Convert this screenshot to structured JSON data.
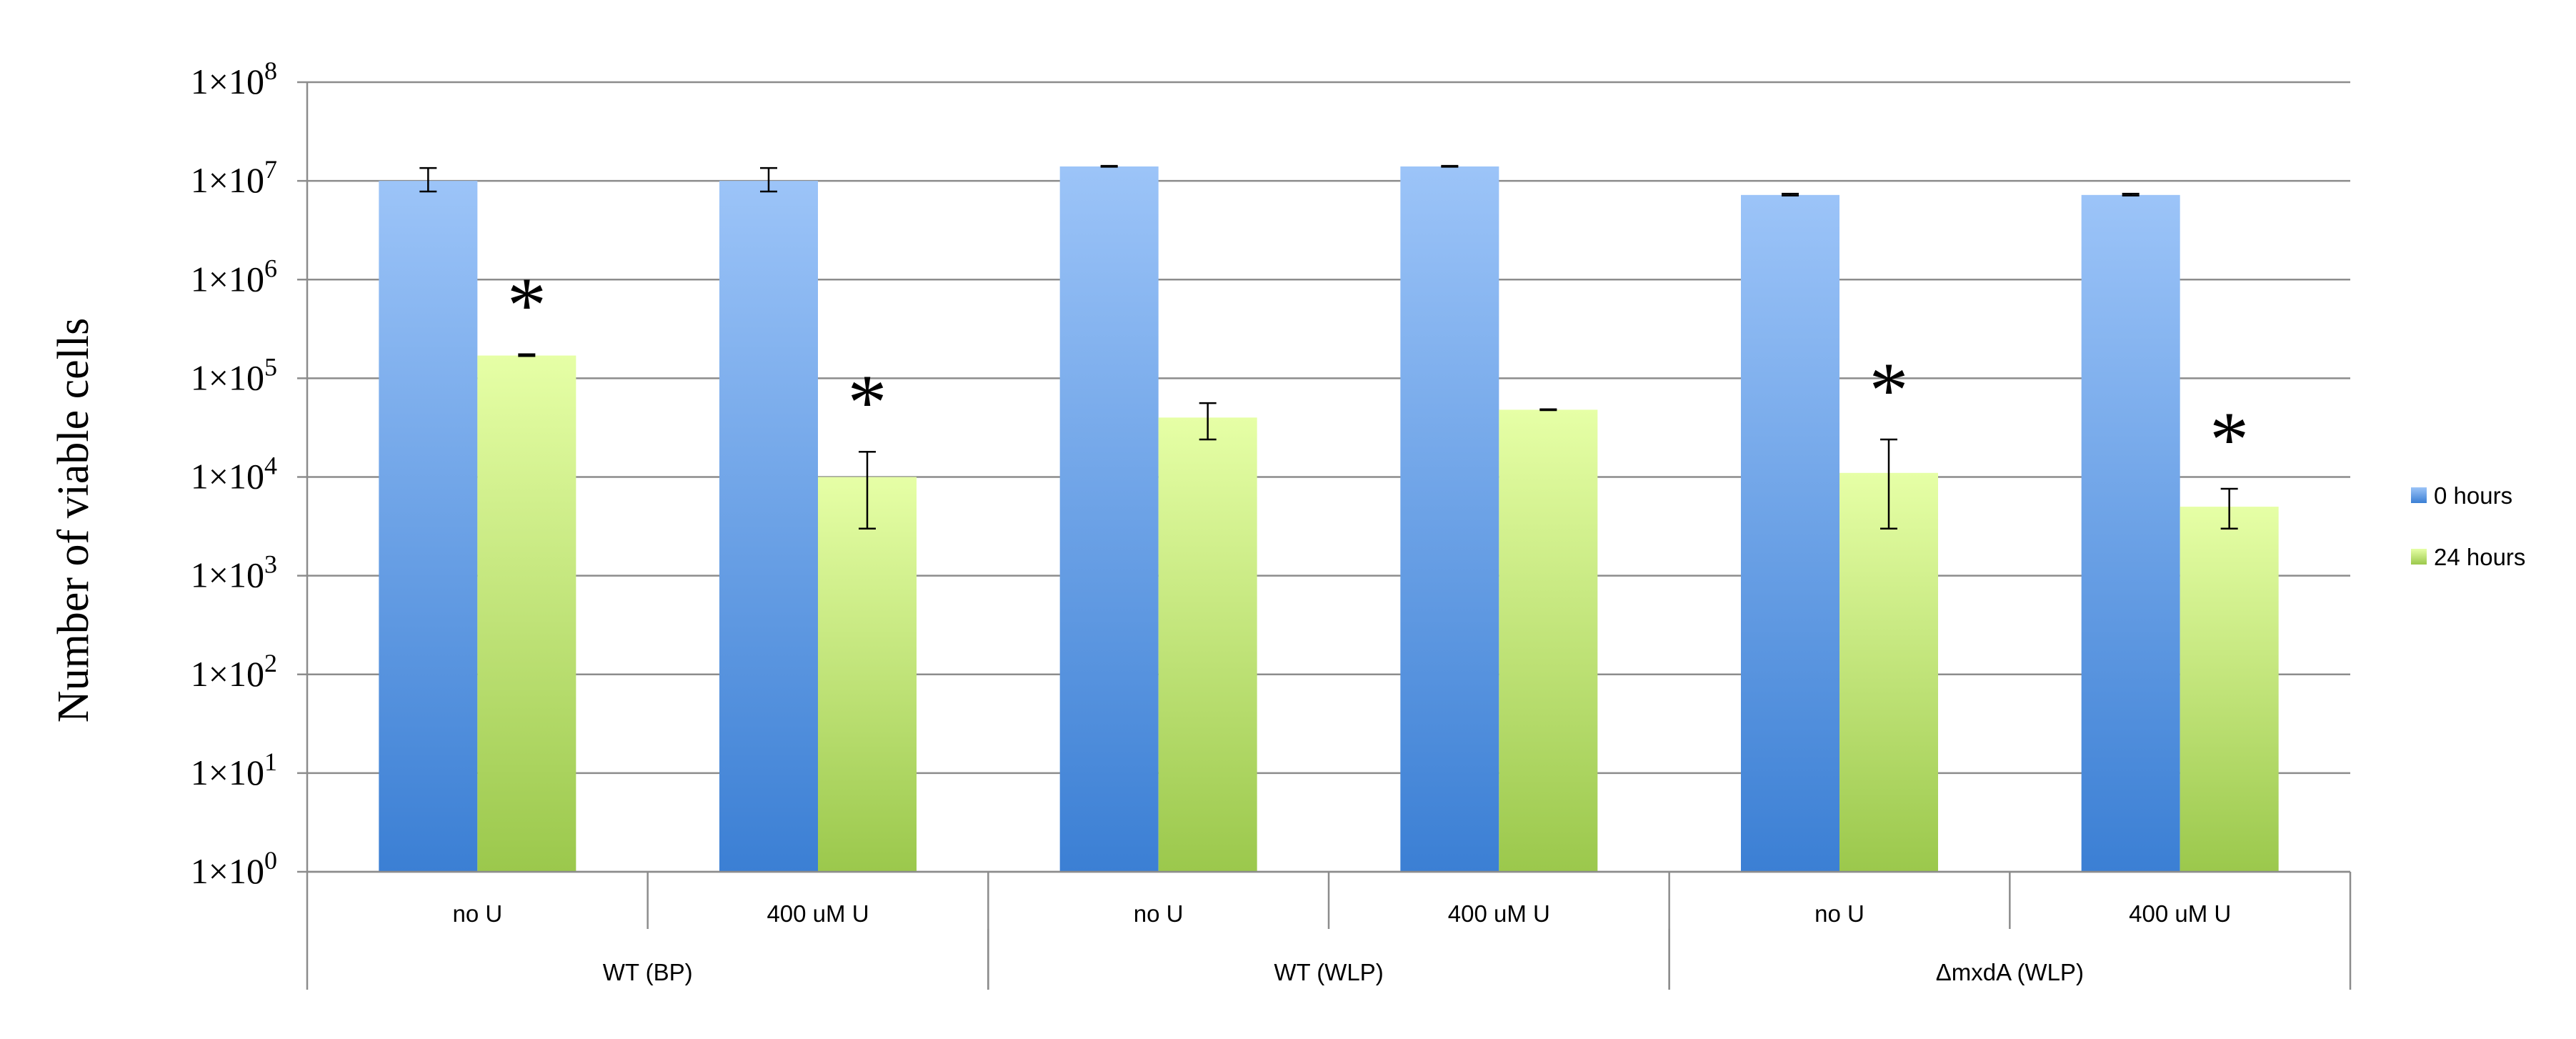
{
  "chart_data": {
    "type": "bar",
    "ylabel": "Number of viable cells",
    "y_scale": "log10",
    "ylim": [
      1,
      100000000
    ],
    "y_ticks": [
      {
        "value": 1,
        "base": "1×10",
        "exp": "0"
      },
      {
        "value": 10,
        "base": "1×10",
        "exp": "1"
      },
      {
        "value": 100,
        "base": "1×10",
        "exp": "2"
      },
      {
        "value": 1000,
        "base": "1×10",
        "exp": "3"
      },
      {
        "value": 10000,
        "base": "1×10",
        "exp": "4"
      },
      {
        "value": 100000,
        "base": "1×10",
        "exp": "5"
      },
      {
        "value": 1000000,
        "base": "1×10",
        "exp": "6"
      },
      {
        "value": 10000000,
        "base": "1×10",
        "exp": "7"
      },
      {
        "value": 100000000,
        "base": "1×10",
        "exp": "8"
      }
    ],
    "categories": [
      "no U",
      "400 uM U",
      "no U",
      "400 uM U",
      "no U",
      "400 uM U"
    ],
    "groups": [
      {
        "label": "WT (BP)",
        "span": [
          0,
          1
        ]
      },
      {
        "label": "WT (WLP)",
        "span": [
          2,
          3
        ]
      },
      {
        "label": "ΔmxdA (WLP)",
        "span": [
          4,
          5
        ]
      }
    ],
    "series": [
      {
        "name": "0 hours",
        "color_top": "#9cc4f8",
        "color_bottom": "#3b7fd4",
        "values": [
          10000000,
          10000000,
          14000000,
          14000000,
          7200000,
          7200000
        ],
        "err_high": [
          13500000,
          13500000,
          14200000,
          14200000,
          7400000,
          7400000
        ],
        "err_low": [
          7800000,
          7800000,
          13900000,
          13900000,
          7100000,
          7100000
        ],
        "significant": [
          false,
          false,
          false,
          false,
          false,
          false
        ]
      },
      {
        "name": "24 hours",
        "color_top": "#e6ffa6",
        "color_bottom": "#9bc84c",
        "values": [
          170000,
          10000,
          40000,
          48000,
          11000,
          5000
        ],
        "err_high": [
          175000,
          18000,
          56000,
          48500,
          24000,
          7600
        ],
        "err_low": [
          168000,
          3000,
          24000,
          47500,
          3000,
          3000
        ],
        "significant": [
          true,
          true,
          false,
          false,
          true,
          true
        ]
      }
    ],
    "significance_marker": "*",
    "legend_position": "right",
    "grid": true
  }
}
